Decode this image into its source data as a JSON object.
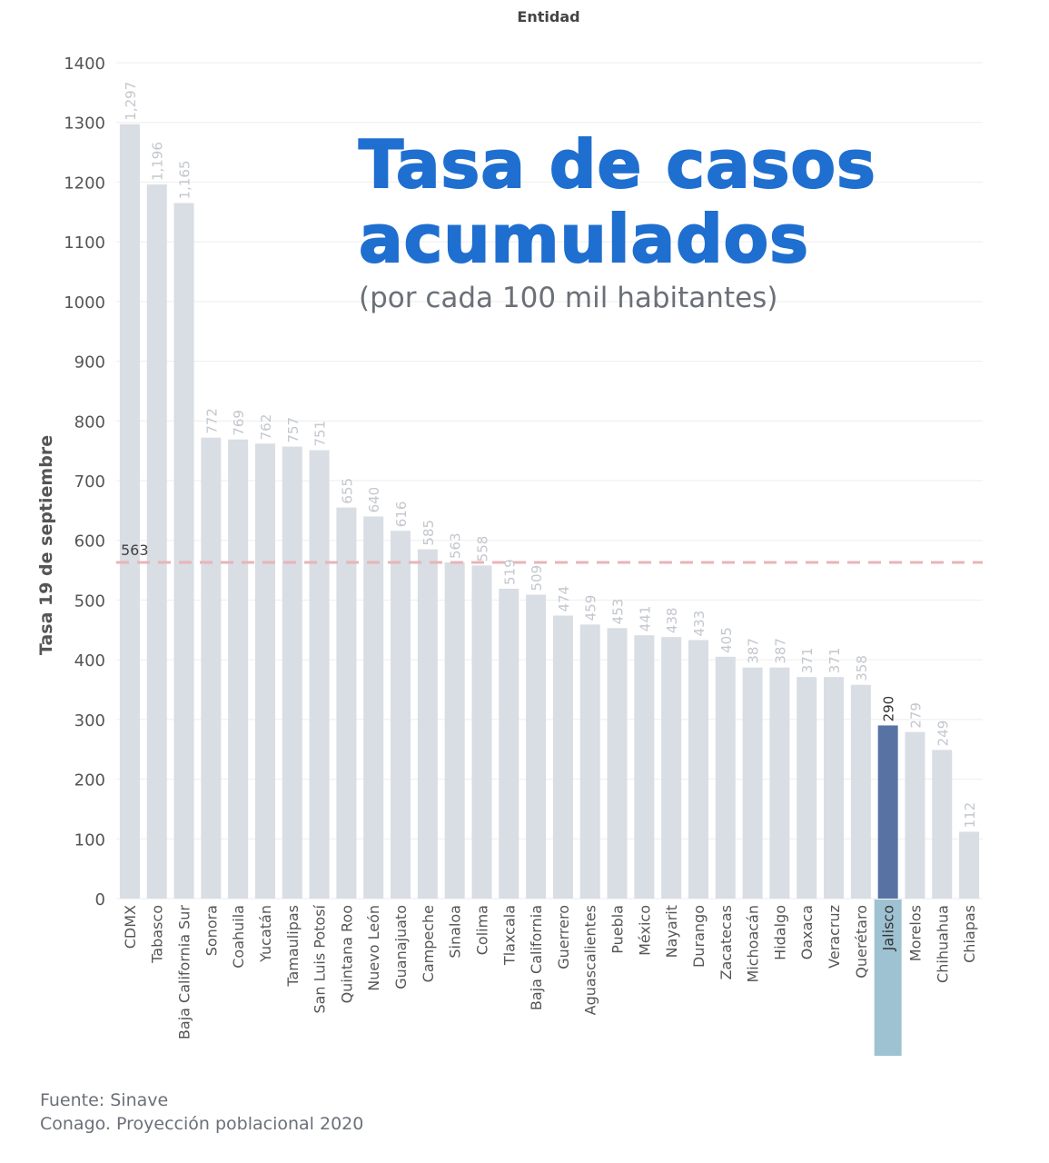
{
  "chart_data": {
    "type": "bar",
    "top_label": "Entidad",
    "title_line1": "Tasa de casos",
    "title_line2": "acumulados",
    "subtitle": "(por cada 100 mil habitantes)",
    "ylabel": "Tasa 19 de septiembre",
    "ylim": [
      0,
      1400
    ],
    "yticks": [
      0,
      100,
      200,
      300,
      400,
      500,
      600,
      700,
      800,
      900,
      1000,
      1100,
      1200,
      1300,
      1400
    ],
    "grid": true,
    "reference_line": {
      "value": 563,
      "label": "563"
    },
    "highlighted_category": "Jalisco",
    "categories": [
      "CDMX",
      "Tabasco",
      "Baja California Sur",
      "Sonora",
      "Coahuila",
      "Yucatán",
      "Tamaulipas",
      "San Luis Potosí",
      "Quintana Roo",
      "Nuevo León",
      "Guanajuato",
      "Campeche",
      "Sinaloa",
      "Colima",
      "Tlaxcala",
      "Baja California",
      "Guerrero",
      "Aguascalientes",
      "Puebla",
      "México",
      "Nayarit",
      "Durango",
      "Zacatecas",
      "Michoacán",
      "Hidalgo",
      "Oaxaca",
      "Veracruz",
      "Querétaro",
      "Jalisco",
      "Morelos",
      "Chihuahua",
      "Chiapas"
    ],
    "values": [
      1297,
      1196,
      1165,
      772,
      769,
      762,
      757,
      751,
      655,
      640,
      616,
      585,
      563,
      558,
      519,
      509,
      474,
      459,
      453,
      441,
      438,
      433,
      405,
      387,
      387,
      371,
      371,
      358,
      290,
      279,
      249,
      112
    ],
    "value_labels": [
      "1,297",
      "1,196",
      "1,165",
      "772",
      "769",
      "762",
      "757",
      "751",
      "655",
      "640",
      "616",
      "585",
      "563",
      "558",
      "519",
      "509",
      "474",
      "459",
      "453",
      "441",
      "438",
      "433",
      "405",
      "387",
      "387",
      "371",
      "371",
      "358",
      "290",
      "279",
      "249",
      "112"
    ],
    "colors": {
      "bar": "#d9dde4",
      "bar_highlight": "#5872a4",
      "label_highlight_bg": "#9ec2d2",
      "value_text": "#c3c7cd",
      "value_text_highlight": "#333333",
      "reference_line": "#e8b4b8",
      "grid": "#eeeeee",
      "axis_text": "#555555",
      "title": "#1f6fd0"
    }
  },
  "source": {
    "line1": "Fuente: Sinave",
    "line2": "Conago. Proyección poblacional 2020"
  }
}
